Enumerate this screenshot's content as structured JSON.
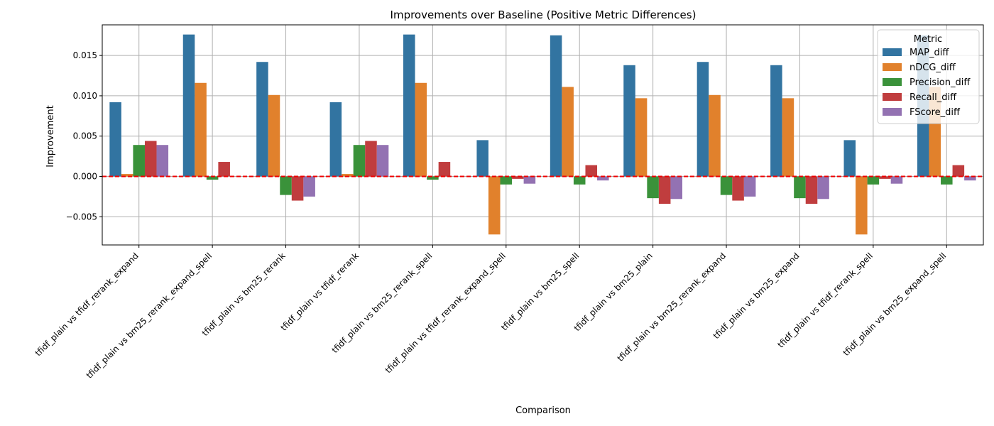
{
  "chart_data": {
    "type": "bar",
    "title": "Improvements over Baseline (Positive Metric Differences)",
    "xlabel": "Comparison",
    "ylabel": "Improvement",
    "ylim": [
      -0.0085,
      0.0188
    ],
    "yticks": [
      -0.005,
      0.0,
      0.005,
      0.01,
      0.015
    ],
    "ytick_labels": [
      "−0.005",
      "0.000",
      "0.005",
      "0.010",
      "0.015"
    ],
    "grid": true,
    "baseline": 0.0,
    "baseline_style": "red dashed",
    "legend": {
      "title": "Metric",
      "placement": "top-right"
    },
    "categories": [
      "tfidf_plain vs tfidf_rerank_expand",
      "tfidf_plain vs bm25_rerank_expand_spell",
      "tfidf_plain vs bm25_rerank",
      "tfidf_plain vs tfidf_rerank",
      "tfidf_plain vs bm25_rerank_spell",
      "tfidf_plain vs tfidf_rerank_expand_spell",
      "tfidf_plain vs bm25_spell",
      "tfidf_plain vs bm25_plain",
      "tfidf_plain vs bm25_rerank_expand",
      "tfidf_plain vs bm25_expand",
      "tfidf_plain vs tfidf_rerank_spell",
      "tfidf_plain vs bm25_expand_spell"
    ],
    "series": [
      {
        "name": "MAP_diff",
        "color": "#3274a1",
        "values": [
          0.0092,
          0.0176,
          0.0142,
          0.0092,
          0.0176,
          0.0045,
          0.0175,
          0.0138,
          0.0142,
          0.0138,
          0.0045,
          0.0175
        ]
      },
      {
        "name": "nDCG_diff",
        "color": "#e1812c",
        "values": [
          0.0003,
          0.0116,
          0.0101,
          0.0003,
          0.0116,
          -0.0072,
          0.0111,
          0.0097,
          0.0101,
          0.0097,
          -0.0072,
          0.0111
        ]
      },
      {
        "name": "Precision_diff",
        "color": "#3a923a",
        "values": [
          0.0039,
          -0.0004,
          -0.0023,
          0.0039,
          -0.0004,
          -0.001,
          -0.001,
          -0.0027,
          -0.0023,
          -0.0027,
          -0.001,
          -0.001
        ]
      },
      {
        "name": "Recall_diff",
        "color": "#c03d3e",
        "values": [
          0.0044,
          0.0018,
          -0.003,
          0.0044,
          0.0018,
          -0.0003,
          0.0014,
          -0.0034,
          -0.003,
          -0.0034,
          -0.0003,
          0.0014
        ]
      },
      {
        "name": "FScore_diff",
        "color": "#9372b2",
        "values": [
          0.0039,
          0.0,
          -0.0025,
          0.0039,
          0.0,
          -0.0009,
          -0.0005,
          -0.0028,
          -0.0025,
          -0.0028,
          -0.0009,
          -0.0005
        ]
      }
    ]
  }
}
